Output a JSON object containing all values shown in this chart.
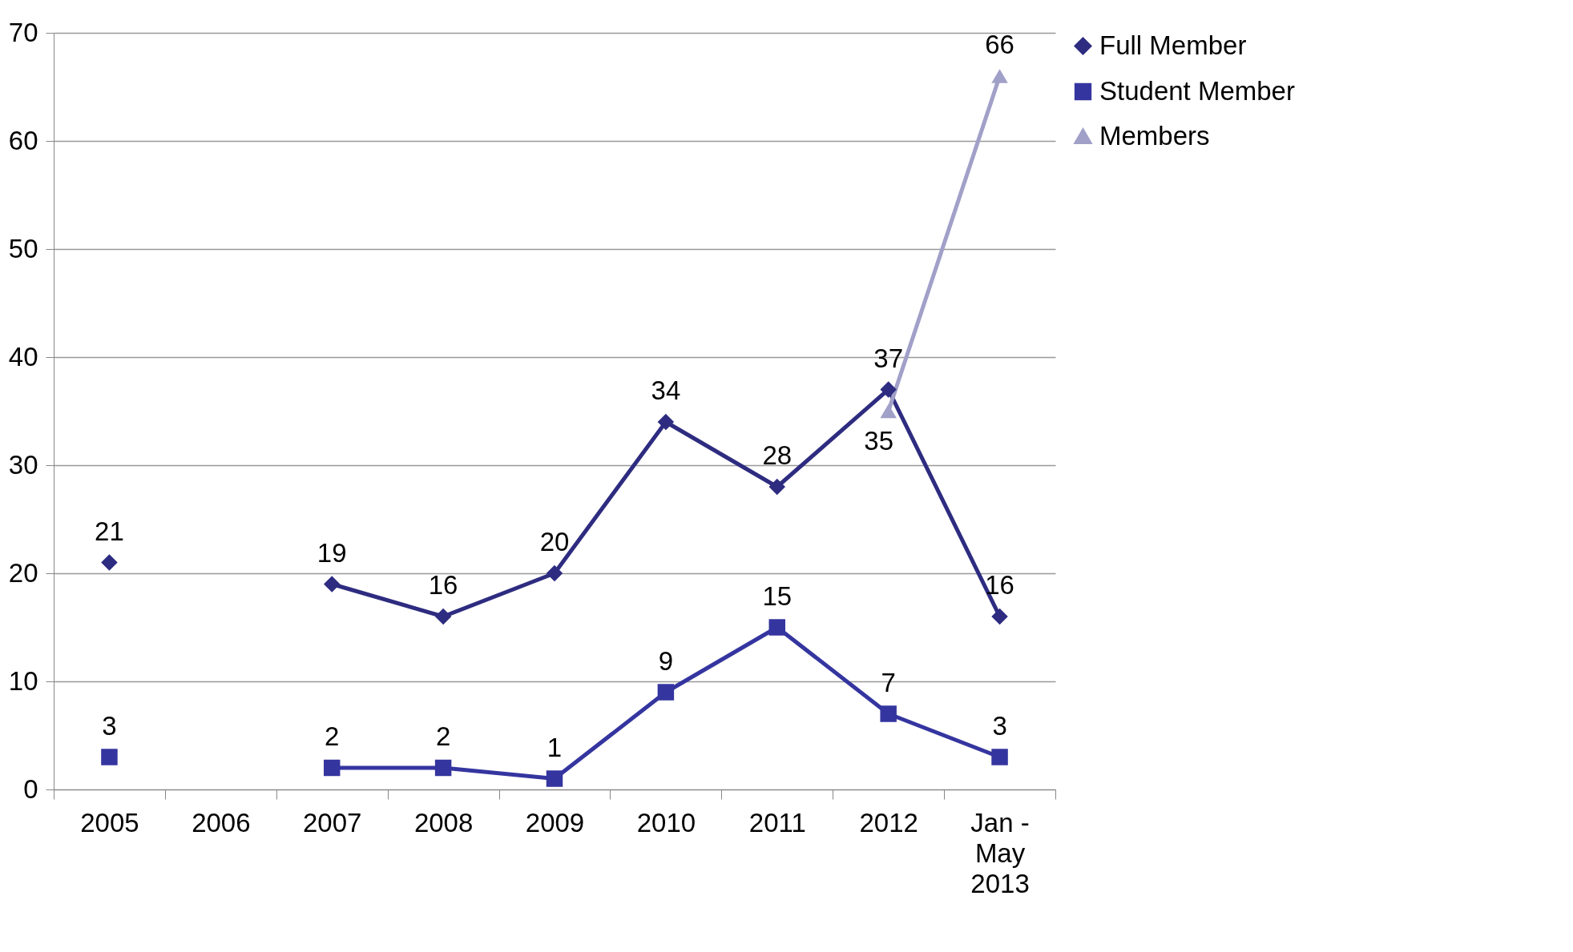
{
  "chart_data": {
    "type": "line",
    "categories": [
      "2005",
      "2006",
      "2007",
      "2008",
      "2009",
      "2010",
      "2011",
      "2012",
      "Jan - May 2013"
    ],
    "ylim": [
      0,
      70
    ],
    "yticks": [
      0,
      10,
      20,
      30,
      40,
      50,
      60,
      70
    ],
    "grid": "y",
    "legend": "right",
    "data_labels": true,
    "series": [
      {
        "name": "Full Member",
        "color": "#2e2c80",
        "marker": "diamond",
        "values": [
          21,
          null,
          19,
          16,
          20,
          34,
          28,
          37,
          16
        ]
      },
      {
        "name": "Student Member",
        "color": "#3535a0",
        "marker": "square",
        "values": [
          3,
          null,
          2,
          2,
          1,
          9,
          15,
          7,
          3
        ]
      },
      {
        "name": "Members",
        "color": "#a0a0c8",
        "marker": "triangle",
        "values": [
          null,
          null,
          null,
          null,
          null,
          null,
          null,
          35,
          66
        ]
      }
    ]
  }
}
